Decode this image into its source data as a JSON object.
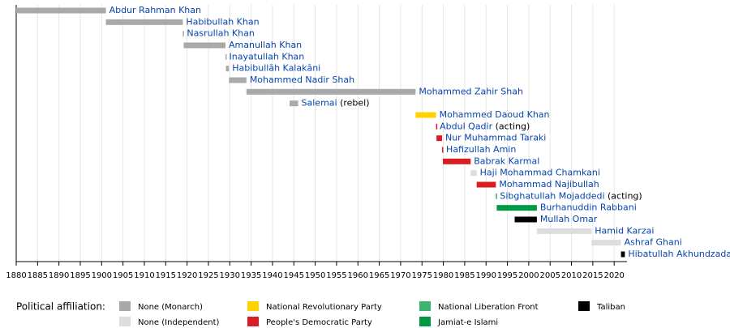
{
  "chart_data": {
    "type": "timeline",
    "bars": [
      {
        "name": "Abdur Rahman Khan",
        "start": 1880,
        "end": 1901,
        "color": "#a9a9a9"
      },
      {
        "name": "Habibullah Khan",
        "start": 1901,
        "end": 1919,
        "color": "#a9a9a9"
      },
      {
        "name": "Nasrullah Khan",
        "start": 1919,
        "end": 1919.2,
        "color": "#a9a9a9"
      },
      {
        "name": "Amanullah Khan",
        "start": 1919.2,
        "end": 1929,
        "color": "#a9a9a9"
      },
      {
        "name": "Inayatullah Khan",
        "start": 1929,
        "end": 1929.1,
        "color": "#a9a9a9"
      },
      {
        "name": "Habibullāh Kalakāni",
        "start": 1929.1,
        "end": 1929.8,
        "color": "#a9a9a9"
      },
      {
        "name": "Mohammed Nadir Shah",
        "start": 1929.8,
        "end": 1933.9,
        "color": "#a9a9a9"
      },
      {
        "name": "Mohammed Zahir Shah",
        "start": 1933.9,
        "end": 1973.5,
        "color": "#a9a9a9"
      },
      {
        "name": "Salemai",
        "note": "(rebel)",
        "start": 1944,
        "end": 1946,
        "color": "#a9a9a9"
      },
      {
        "name": "Mohammed Daoud Khan",
        "start": 1973.5,
        "end": 1978.3,
        "color": "#ffd200"
      },
      {
        "name": "Abdul Qadir",
        "note": "(acting)",
        "start": 1978.3,
        "end": 1978.4,
        "color": "#dc1c24"
      },
      {
        "name": "Nur Muhammad Taraki",
        "start": 1978.4,
        "end": 1979.7,
        "color": "#dc1c24"
      },
      {
        "name": "Hafizullah Amin",
        "start": 1979.7,
        "end": 1979.9,
        "color": "#dc1c24"
      },
      {
        "name": "Babrak Karmal",
        "start": 1979.9,
        "end": 1986.4,
        "color": "#dc1c24"
      },
      {
        "name": "Haji Mohammad Chamkani",
        "start": 1986.4,
        "end": 1987.8,
        "color": "#dddddd"
      },
      {
        "name": "Mohammad Najibullah",
        "start": 1987.8,
        "end": 1992.3,
        "color": "#dc1c24"
      },
      {
        "name": "Sibghatullah Mojaddedi",
        "note": "(acting)",
        "start": 1992.3,
        "end": 1992.5,
        "color": "#3cb371"
      },
      {
        "name": "Burhanuddin Rabbani",
        "start": 1992.5,
        "end": 2001.9,
        "color": "#009a44"
      },
      {
        "name": "Mullah Omar",
        "start": 1996.7,
        "end": 2001.9,
        "color": "#000000"
      },
      {
        "name": "Hamid Karzai",
        "start": 2001.9,
        "end": 2014.7,
        "color": "#dddddd"
      },
      {
        "name": "Ashraf Ghani",
        "start": 2014.7,
        "end": 2021.6,
        "color": "#dddddd"
      },
      {
        "name": "Hibatullah Akhundzada",
        "start": 2021.6,
        "end": 2022.5,
        "color": "#000000"
      }
    ],
    "xlim": [
      1880,
      2023
    ],
    "xticks": [
      1880,
      1885,
      1890,
      1895,
      1900,
      1905,
      1910,
      1915,
      1920,
      1925,
      1930,
      1935,
      1940,
      1945,
      1950,
      1955,
      1960,
      1965,
      1970,
      1975,
      1980,
      1985,
      1990,
      1995,
      2000,
      2005,
      2010,
      2015,
      2020
    ],
    "grid": true,
    "legend_title": "Political affiliation:",
    "legend": [
      {
        "name": "None (Monarch)",
        "color": "#a9a9a9"
      },
      {
        "name": "None (Independent)",
        "color": "#dddddd"
      },
      {
        "name": "National Revolutionary Party",
        "color": "#ffd200"
      },
      {
        "name": "People's Democratic Party",
        "color": "#dc1c24"
      },
      {
        "name": "National Liberation Front",
        "color": "#3cb371"
      },
      {
        "name": "Jamiat-e Islami",
        "color": "#009a44"
      },
      {
        "name": "Taliban",
        "color": "#000000"
      }
    ]
  }
}
